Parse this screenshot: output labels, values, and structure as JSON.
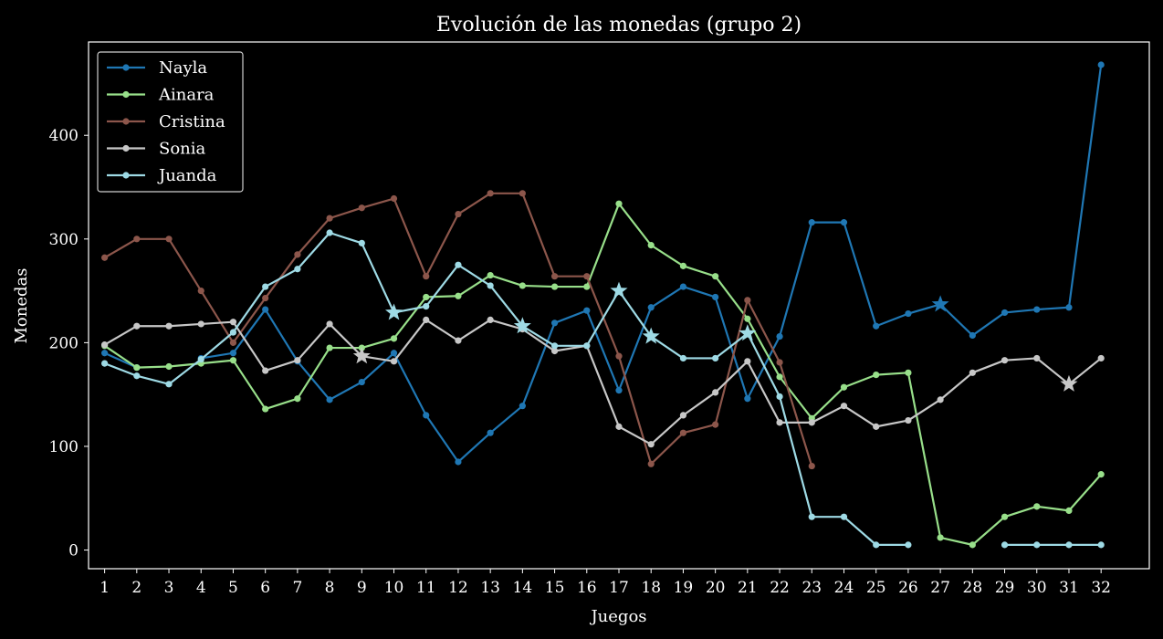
{
  "chart_data": {
    "type": "line",
    "title": "Evolución de las monedas (grupo 2)",
    "xlabel": "Juegos",
    "ylabel": "Monedas",
    "x": [
      1,
      2,
      3,
      4,
      5,
      6,
      7,
      8,
      9,
      10,
      11,
      12,
      13,
      14,
      15,
      16,
      17,
      18,
      19,
      20,
      21,
      22,
      23,
      24,
      25,
      26,
      27,
      28,
      29,
      30,
      31,
      32
    ],
    "xlim": [
      0.5,
      33.5
    ],
    "ylim": [
      -18,
      490
    ],
    "yticks": [
      0,
      100,
      200,
      300,
      400
    ],
    "grid": false,
    "legend_position": "top-left",
    "series": [
      {
        "name": "Nayla",
        "color": "#1f77b4",
        "values": [
          190,
          176,
          null,
          185,
          190,
          232,
          182,
          145,
          162,
          190,
          130,
          85,
          113,
          139,
          219,
          231,
          154,
          234,
          254,
          244,
          146,
          206,
          316,
          316,
          216,
          228,
          237,
          207,
          229,
          232,
          234,
          468
        ],
        "stars": [
          27
        ]
      },
      {
        "name": "Ainara",
        "color": "#98df8a",
        "values": [
          197,
          176,
          177,
          180,
          183,
          136,
          146,
          195,
          195,
          204,
          244,
          245,
          265,
          255,
          254,
          254,
          334,
          294,
          274,
          264,
          223,
          167,
          127,
          157,
          169,
          171,
          12,
          5,
          32,
          42,
          38,
          73
        ],
        "stars": []
      },
      {
        "name": "Cristina",
        "color": "#8c564b",
        "values": [
          282,
          300,
          300,
          250,
          200,
          243,
          285,
          320,
          330,
          339,
          264,
          324,
          344,
          344,
          264,
          264,
          187,
          83,
          113,
          121,
          241,
          181,
          81,
          null,
          null,
          null,
          null,
          null,
          null,
          null,
          null,
          null
        ],
        "stars": []
      },
      {
        "name": "Sonia",
        "color": "#c7c7c7",
        "values": [
          198,
          216,
          216,
          218,
          220,
          173,
          183,
          218,
          187,
          182,
          222,
          202,
          222,
          213,
          192,
          197,
          119,
          102,
          130,
          152,
          182,
          123,
          123,
          139,
          119,
          125,
          145,
          171,
          183,
          185,
          160,
          185
        ],
        "stars": [
          9,
          31
        ]
      },
      {
        "name": "Juanda",
        "color": "#9edae5",
        "values": [
          180,
          168,
          160,
          184,
          210,
          254,
          271,
          306,
          296,
          229,
          235,
          275,
          255,
          216,
          197,
          197,
          250,
          206,
          185,
          185,
          209,
          148,
          32,
          32,
          5,
          5,
          null,
          null,
          5,
          5,
          5,
          5
        ],
        "stars": [
          10,
          14,
          17,
          18,
          21
        ]
      }
    ]
  }
}
